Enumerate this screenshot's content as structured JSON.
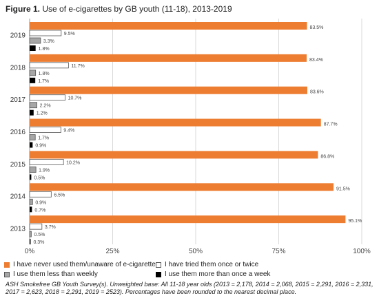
{
  "figure_label": "Figure 1.",
  "figure_title": "Use of e-cigarettes by GB youth (11-18), 2013-2019",
  "colors": {
    "never": "#ED7D31",
    "tried": "#FFFFFF",
    "less_weekly": "#A6A6A6",
    "more_weekly": "#000000",
    "outline": "#555555",
    "axis": "#999999"
  },
  "chart_data": {
    "type": "bar",
    "orientation": "horizontal",
    "categories": [
      "2019",
      "2018",
      "2017",
      "2016",
      "2015",
      "2014",
      "2013"
    ],
    "series": [
      {
        "name": "I have never used them/unaware of e-cigarettes",
        "values": [
          83.5,
          83.4,
          83.6,
          87.7,
          86.8,
          91.5,
          95.1
        ]
      },
      {
        "name": "I have tried them once or twice",
        "values": [
          9.5,
          11.7,
          10.7,
          9.4,
          10.2,
          6.5,
          3.7
        ]
      },
      {
        "name": "I use them less than weekly",
        "values": [
          3.3,
          1.8,
          2.2,
          1.7,
          1.9,
          0.9,
          0.5
        ]
      },
      {
        "name": "I use them more than once a week",
        "values": [
          1.8,
          1.7,
          1.2,
          0.9,
          0.5,
          0.7,
          0.3
        ]
      }
    ],
    "xlim": [
      0,
      100
    ],
    "xticks": [
      "0%",
      "25%",
      "50%",
      "75%",
      "100%"
    ],
    "grid": true
  },
  "legend": {
    "never": "I have never used them/unaware of e-cigarettes",
    "tried": "I have tried them once or twice",
    "less_weekly": "I use them less than weekly",
    "more_weekly": "I use them more than once a week"
  },
  "footnote": "ASH Smokefree GB Youth Survey(s). Unweighted base: All 11-18 year olds (2013 = 2,178, 2014 = 2,068, 2015 = 2,291, 2016 = 2,331, 2017 = 2,623, 2018 = 2,291, 2019 = 2523). Percentages have been rounded to the nearest decimal place."
}
